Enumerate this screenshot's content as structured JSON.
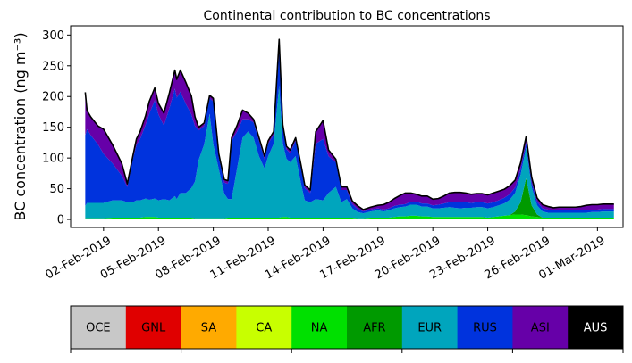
{
  "chart_data": [
    {
      "type": "area",
      "title": "Continental contribution to BC concentrations",
      "xlabel": "",
      "ylabel": "BC concentration (ng m⁻³)",
      "xlim_days_from_2019_02_01": [
        -0.8,
        29.4
      ],
      "ylim": [
        -13,
        315
      ],
      "ytick_values": [
        0,
        50,
        100,
        150,
        200,
        250,
        300
      ],
      "ytick_labels": [
        "0",
        "50",
        "100",
        "150",
        "200",
        "250",
        "300"
      ],
      "xtick_days_from_2019_02_01": [
        1,
        4,
        7,
        10,
        13,
        16,
        19,
        22,
        25,
        28
      ],
      "xtick_labels": [
        "02-Feb-2019",
        "05-Feb-2019",
        "08-Feb-2019",
        "11-Feb-2019",
        "14-Feb-2019",
        "17-Feb-2019",
        "20-Feb-2019",
        "23-Feb-2019",
        "26-Feb-2019",
        "01-Mar-2019"
      ],
      "x_days_from_2019_02_01": [
        0,
        0.1,
        0.3,
        0.7,
        1.0,
        1.5,
        2.0,
        2.3,
        2.6,
        2.8,
        3.0,
        3.3,
        3.5,
        3.8,
        4.0,
        4.3,
        4.6,
        4.9,
        5.0,
        5.2,
        5.5,
        5.8,
        6.0,
        6.2,
        6.5,
        6.8,
        7.0,
        7.3,
        7.6,
        7.8,
        8.0,
        8.3,
        8.6,
        8.9,
        9.2,
        9.5,
        9.8,
        10.0,
        10.3,
        10.6,
        10.8,
        11.0,
        11.2,
        11.5,
        11.8,
        12.0,
        12.3,
        12.6,
        13.0,
        13.3,
        13.7,
        14.0,
        14.3,
        14.6,
        14.9,
        15.2,
        15.6,
        16.0,
        16.3,
        16.6,
        16.9,
        17.2,
        17.5,
        17.8,
        18.1,
        18.4,
        18.7,
        19.0,
        19.3,
        19.6,
        19.9,
        20.2,
        20.5,
        20.8,
        21.1,
        21.4,
        21.7,
        22.0,
        22.3,
        22.6,
        22.9,
        23.2,
        23.5,
        23.8,
        24.1,
        24.4,
        24.7,
        25.0,
        25.3,
        25.6,
        25.9,
        26.2,
        26.5,
        26.8,
        27.1,
        27.4,
        27.7,
        28.0,
        28.3,
        28.6,
        28.9
      ],
      "series": [
        {
          "name": "OCE",
          "color": "#c8c8c8",
          "values": [
            0,
            0,
            0,
            0,
            0,
            0,
            0,
            0,
            0,
            0,
            0,
            0,
            0,
            0,
            0,
            0,
            0,
            0,
            0,
            0,
            0,
            0,
            0,
            0,
            0,
            0,
            0,
            0,
            0,
            0,
            0,
            0,
            0,
            0,
            0,
            0,
            0,
            0,
            0,
            0,
            0,
            0,
            0,
            0,
            0,
            0,
            0,
            0,
            0,
            0,
            0,
            0,
            0,
            0,
            0,
            0,
            0,
            0,
            0,
            0,
            0,
            0,
            0,
            0,
            0,
            0,
            0,
            0,
            0,
            0,
            0,
            0,
            0,
            0,
            0,
            0,
            0,
            0,
            0,
            0,
            0,
            0,
            0,
            0,
            0,
            0,
            0,
            0,
            0,
            0,
            0,
            0,
            0,
            0,
            0,
            0,
            0,
            0,
            0,
            0,
            0
          ]
        },
        {
          "name": "GNL",
          "color": "#e00000",
          "values": [
            0,
            0,
            0,
            0,
            0,
            0,
            0,
            0,
            0,
            0,
            0,
            0,
            0,
            0,
            0,
            0,
            0,
            0,
            0,
            0,
            0,
            0,
            0,
            0,
            0,
            0,
            0,
            0,
            0,
            0,
            0,
            0,
            0,
            0,
            0,
            0,
            0,
            0,
            0,
            0,
            0,
            0,
            0,
            0,
            0,
            0,
            0,
            0,
            0,
            0,
            0,
            0,
            0,
            0,
            0,
            0,
            0,
            0,
            0,
            0,
            0,
            0,
            0,
            0,
            0,
            0,
            0,
            0,
            0,
            0,
            0,
            0,
            0,
            0,
            0,
            0,
            0,
            0,
            0,
            0,
            0,
            0,
            0,
            0,
            0,
            0,
            0,
            0,
            0,
            0,
            0,
            0,
            0,
            0,
            0,
            0,
            0,
            0,
            0,
            0,
            0
          ]
        },
        {
          "name": "SA",
          "color": "#ffaa00",
          "values": [
            0,
            0,
            0,
            0,
            0,
            0,
            0,
            0,
            0,
            0,
            0,
            0,
            0,
            0,
            0,
            0,
            0,
            0,
            0,
            0,
            0,
            0,
            0,
            0,
            0,
            0,
            0,
            0,
            0,
            0,
            0,
            0,
            0,
            0,
            0,
            0,
            0,
            0,
            0,
            0,
            0,
            0,
            0,
            0,
            0,
            0,
            0,
            0,
            0,
            0,
            0,
            0,
            0,
            0,
            0,
            0,
            0,
            0,
            0,
            0,
            0,
            0,
            0,
            0,
            0,
            0,
            0,
            0,
            0,
            0,
            0,
            0,
            0,
            0,
            0,
            0,
            0,
            0,
            0,
            0,
            0,
            0,
            0,
            0,
            0,
            0,
            0,
            0,
            0,
            0,
            0,
            0,
            0,
            0,
            0,
            0,
            0,
            0,
            0,
            0,
            0
          ]
        },
        {
          "name": "CA",
          "color": "#c8ff00",
          "values": [
            0,
            0,
            0,
            0,
            0,
            0,
            0,
            0,
            0,
            0,
            0,
            0,
            0,
            0,
            0,
            0,
            0,
            0,
            0,
            0,
            0,
            0,
            0,
            0,
            0,
            0,
            0,
            0,
            0,
            0,
            0,
            0,
            0,
            0,
            0,
            0,
            0,
            0,
            0,
            0,
            0,
            0,
            0,
            0,
            0,
            0,
            0,
            0,
            0,
            0,
            0,
            0,
            0,
            0,
            0,
            0,
            0,
            0,
            0,
            0,
            0,
            0,
            0,
            0,
            0,
            0,
            0,
            0,
            0,
            0,
            0,
            0,
            0,
            0,
            0,
            0,
            0,
            0,
            0,
            0,
            0,
            0,
            0,
            0,
            0,
            0,
            0,
            0,
            0,
            0,
            0,
            0,
            0,
            0,
            0,
            0,
            0,
            0,
            0,
            0,
            0
          ]
        },
        {
          "name": "NA",
          "color": "#00e000",
          "values": [
            2,
            2,
            2,
            2,
            2,
            3,
            3,
            3,
            3,
            3,
            3,
            4,
            4,
            4,
            3,
            3,
            3,
            3,
            3,
            3,
            3,
            3,
            2,
            2,
            2,
            2,
            2,
            2,
            2,
            3,
            3,
            3,
            3,
            3,
            3,
            3,
            3,
            3,
            3,
            3,
            4,
            4,
            3,
            3,
            3,
            3,
            3,
            3,
            3,
            3,
            3,
            3,
            3,
            3,
            2,
            2,
            3,
            3,
            3,
            3,
            4,
            5,
            5,
            6,
            6,
            5,
            5,
            4,
            4,
            4,
            4,
            4,
            4,
            4,
            4,
            4,
            4,
            3,
            4,
            5,
            6,
            7,
            8,
            8,
            7,
            5,
            4,
            3,
            3,
            3,
            3,
            3,
            3,
            3,
            3,
            3,
            3,
            3,
            3,
            3,
            3
          ]
        },
        {
          "name": "AFR",
          "color": "#009a00",
          "values": [
            0,
            0,
            0,
            0,
            0,
            0,
            0,
            0,
            0,
            0,
            0,
            0,
            0,
            0,
            0,
            0,
            0,
            0,
            0,
            0,
            0,
            0,
            0,
            0,
            0,
            0,
            0,
            0,
            0,
            0,
            0,
            0,
            0,
            0,
            0,
            0,
            0,
            0,
            0,
            0,
            0,
            0,
            0,
            0,
            0,
            0,
            0,
            0,
            0,
            0,
            0,
            0,
            0,
            0,
            0,
            0,
            0,
            0,
            0,
            0,
            0,
            0,
            0,
            0,
            0,
            0,
            0,
            0,
            0,
            0,
            0,
            0,
            0,
            0,
            0,
            0,
            0,
            0,
            0,
            0,
            0,
            0,
            5,
            20,
            60,
            18,
            4,
            0,
            0,
            0,
            0,
            0,
            0,
            0,
            0,
            0,
            0,
            0,
            0,
            0,
            0
          ]
        },
        {
          "name": "EUR",
          "color": "#00a5bd",
          "values": [
            20,
            25,
            25,
            25,
            25,
            28,
            28,
            25,
            25,
            28,
            28,
            30,
            28,
            30,
            28,
            30,
            28,
            35,
            30,
            40,
            40,
            48,
            60,
            95,
            120,
            170,
            120,
            80,
            40,
            30,
            30,
            80,
            130,
            140,
            130,
            100,
            80,
            100,
            120,
            215,
            120,
            95,
            90,
            100,
            55,
            28,
            25,
            30,
            28,
            40,
            50,
            25,
            30,
            15,
            10,
            8,
            10,
            12,
            10,
            12,
            14,
            15,
            16,
            18,
            18,
            16,
            16,
            14,
            14,
            15,
            16,
            15,
            14,
            15,
            15,
            16,
            16,
            15,
            16,
            18,
            20,
            25,
            30,
            45,
            50,
            30,
            15,
            10,
            8,
            8,
            8,
            8,
            8,
            8,
            8,
            8,
            9,
            9,
            10,
            10,
            10
          ]
        },
        {
          "name": "RUS",
          "color": "#0033dd",
          "values": [
            115,
            120,
            110,
            95,
            80,
            60,
            40,
            25,
            70,
            90,
            100,
            120,
            140,
            160,
            140,
            120,
            150,
            175,
            165,
            165,
            145,
            120,
            90,
            48,
            30,
            25,
            70,
            20,
            18,
            25,
            95,
            60,
            30,
            20,
            25,
            25,
            15,
            20,
            15,
            55,
            25,
            15,
            15,
            25,
            25,
            20,
            15,
            90,
            100,
            60,
            40,
            20,
            15,
            7,
            5,
            3,
            3,
            3,
            3,
            3,
            4,
            4,
            4,
            5,
            5,
            5,
            5,
            5,
            6,
            7,
            8,
            9,
            10,
            9,
            8,
            8,
            8,
            8,
            8,
            8,
            9,
            9,
            9,
            9,
            8,
            8,
            6,
            5,
            5,
            4,
            4,
            4,
            4,
            4,
            4,
            4,
            4,
            4,
            4,
            4,
            4
          ]
        },
        {
          "name": "ASI",
          "color": "#6600a8",
          "values": [
            70,
            30,
            30,
            30,
            40,
            30,
            20,
            5,
            5,
            10,
            12,
            15,
            20,
            20,
            18,
            20,
            25,
            30,
            30,
            35,
            35,
            30,
            15,
            5,
            5,
            5,
            5,
            5,
            5,
            5,
            5,
            10,
            15,
            10,
            5,
            5,
            5,
            5,
            5,
            20,
            5,
            5,
            5,
            5,
            5,
            5,
            5,
            20,
            30,
            10,
            5,
            5,
            5,
            5,
            5,
            3,
            4,
            5,
            8,
            10,
            12,
            15,
            18,
            14,
            12,
            12,
            12,
            10,
            10,
            12,
            15,
            16,
            16,
            15,
            14,
            14,
            14,
            14,
            15,
            15,
            14,
            14,
            12,
            10,
            10,
            8,
            6,
            6,
            5,
            4,
            5,
            5,
            5,
            5,
            6,
            8,
            8,
            8,
            8,
            8,
            8
          ]
        },
        {
          "name": "AUS",
          "color": "#000000",
          "values": [
            0,
            0,
            0,
            0,
            0,
            0,
            0,
            0,
            0,
            0,
            0,
            0,
            0,
            0,
            0,
            0,
            0,
            0,
            0,
            0,
            0,
            0,
            0,
            0,
            0,
            0,
            0,
            0,
            0,
            0,
            0,
            0,
            0,
            0,
            0,
            0,
            0,
            0,
            0,
            0,
            0,
            0,
            0,
            0,
            0,
            0,
            0,
            0,
            0,
            0,
            0,
            0,
            0,
            0,
            0,
            0,
            0,
            0,
            0,
            0,
            0,
            0,
            0,
            0,
            0,
            0,
            0,
            0,
            0,
            0,
            0,
            0,
            0,
            0,
            0,
            0,
            0,
            0,
            0,
            0,
            0,
            0,
            0,
            0,
            0,
            0,
            0,
            0,
            0,
            0,
            0,
            0,
            0,
            0,
            0,
            0,
            0,
            0,
            0,
            0,
            0
          ]
        }
      ],
      "total_line_color": "#000000"
    },
    {
      "type": "colorbar",
      "categories": [
        "OCE",
        "GNL",
        "SA",
        "CA",
        "NA",
        "AFR",
        "EUR",
        "RUS",
        "ASI",
        "AUS"
      ],
      "colors": [
        "#c8c8c8",
        "#e00000",
        "#ffaa00",
        "#c8ff00",
        "#00e000",
        "#009a00",
        "#00a5bd",
        "#0033dd",
        "#6600a8",
        "#000000"
      ],
      "label_colors": [
        "#000000",
        "#000000",
        "#000000",
        "#000000",
        "#000000",
        "#000000",
        "#000000",
        "#000000",
        "#000000",
        "#ffffff"
      ]
    }
  ]
}
